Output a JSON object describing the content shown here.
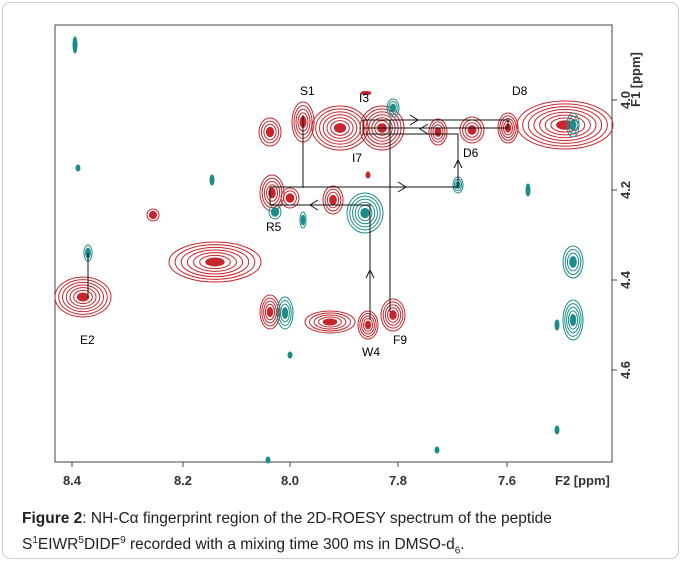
{
  "figure": {
    "x_axis": {
      "ticks": [
        "8.4",
        "8.2",
        "8.0",
        "7.8",
        "7.6"
      ],
      "label": "F2 [ppm]"
    },
    "y_axis": {
      "ticks": [
        "4.0",
        "4.2",
        "4.4",
        "4.6"
      ],
      "label": "F1 [ppm]"
    },
    "peak_labels": [
      "S1",
      "I3",
      "D8",
      "I7",
      "D6",
      "R5",
      "E2",
      "W4",
      "F9"
    ]
  },
  "caption": {
    "label": "Figure 2",
    "line1": ": NH-Cα fingerprint region of the 2D-ROESY spectrum of the peptide",
    "line2": [
      "S",
      "1",
      "EIWR",
      "5",
      "DIDF",
      "9",
      " recorded with a mixing time 300 ms in DMSO-d",
      "6",
      "."
    ]
  }
}
